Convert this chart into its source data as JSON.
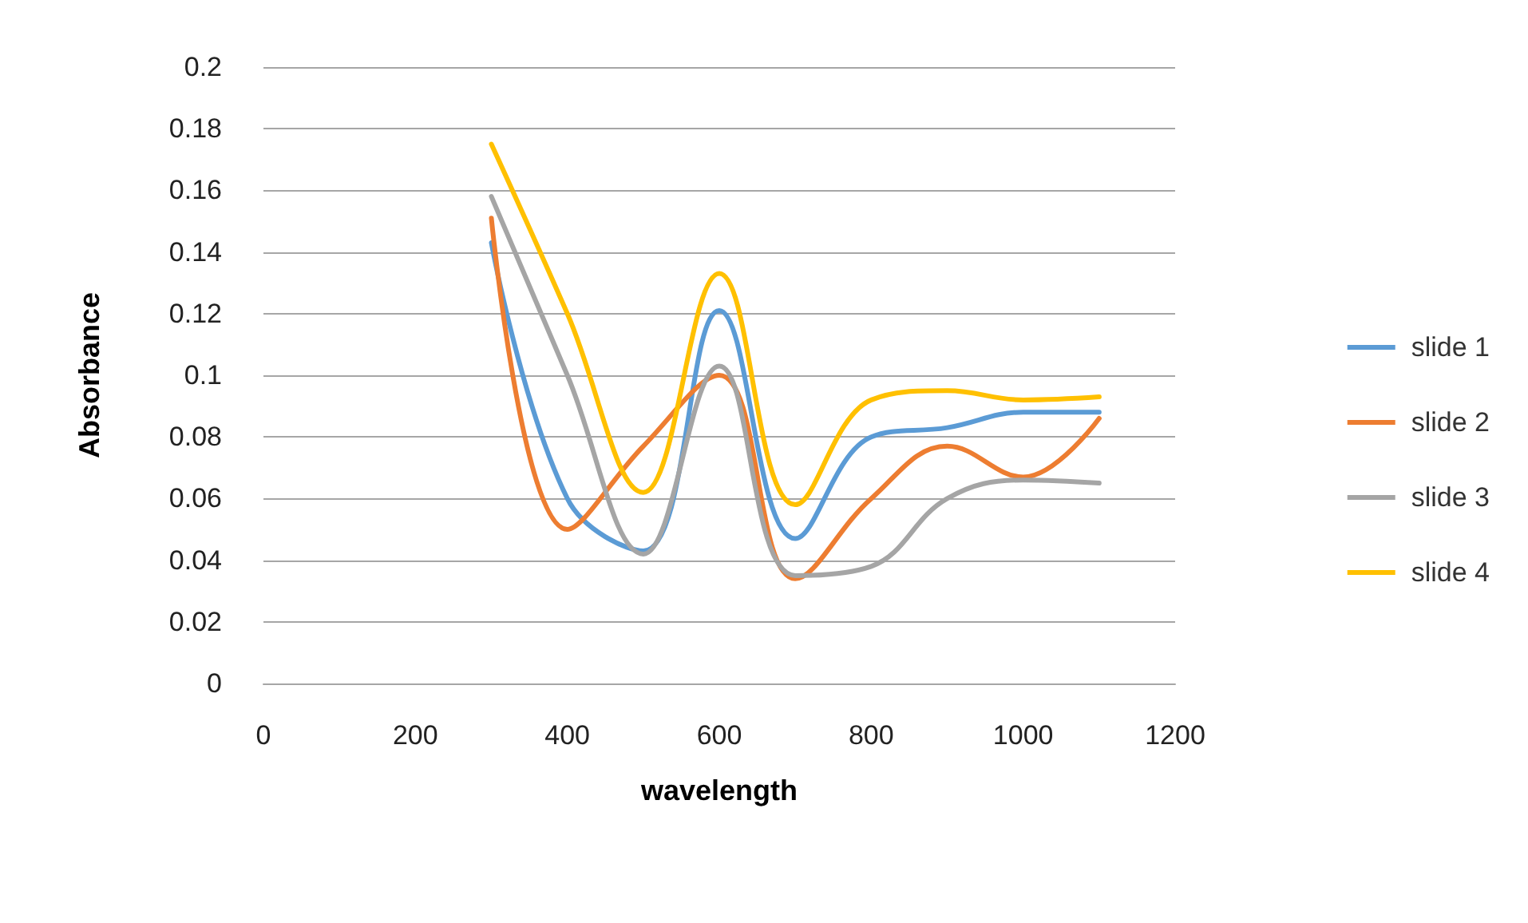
{
  "chart_data": {
    "type": "line",
    "xlabel": "wavelength",
    "ylabel": "Absorbance",
    "x": [
      300,
      400,
      500,
      600,
      700,
      800,
      900,
      1000,
      1100
    ],
    "series": [
      {
        "name": "slide 1",
        "color": "#5b9bd5",
        "values": [
          0.143,
          0.06,
          0.043,
          0.121,
          0.047,
          0.08,
          0.083,
          0.088,
          0.088
        ]
      },
      {
        "name": "slide 2",
        "color": "#ed7d31",
        "values": [
          0.151,
          0.05,
          0.077,
          0.1,
          0.034,
          0.06,
          0.077,
          0.067,
          0.086
        ]
      },
      {
        "name": "slide 3",
        "color": "#a5a5a5",
        "values": [
          0.158,
          0.1,
          0.042,
          0.103,
          0.035,
          0.038,
          0.06,
          0.066,
          0.065
        ]
      },
      {
        "name": "slide 4",
        "color": "#ffc000",
        "values": [
          0.175,
          0.12,
          0.062,
          0.133,
          0.058,
          0.092,
          0.095,
          0.092,
          0.093
        ]
      }
    ],
    "xlim": [
      0,
      1200
    ],
    "xticks": [
      0,
      200,
      400,
      600,
      800,
      1000,
      1200
    ],
    "ylim": [
      0,
      0.2
    ],
    "yticks": [
      0,
      0.02,
      0.04,
      0.06,
      0.08,
      0.1,
      0.12,
      0.14,
      0.16,
      0.18,
      0.2
    ],
    "grid": "y",
    "legend": "right",
    "marker": "none",
    "line_style": "solid"
  }
}
